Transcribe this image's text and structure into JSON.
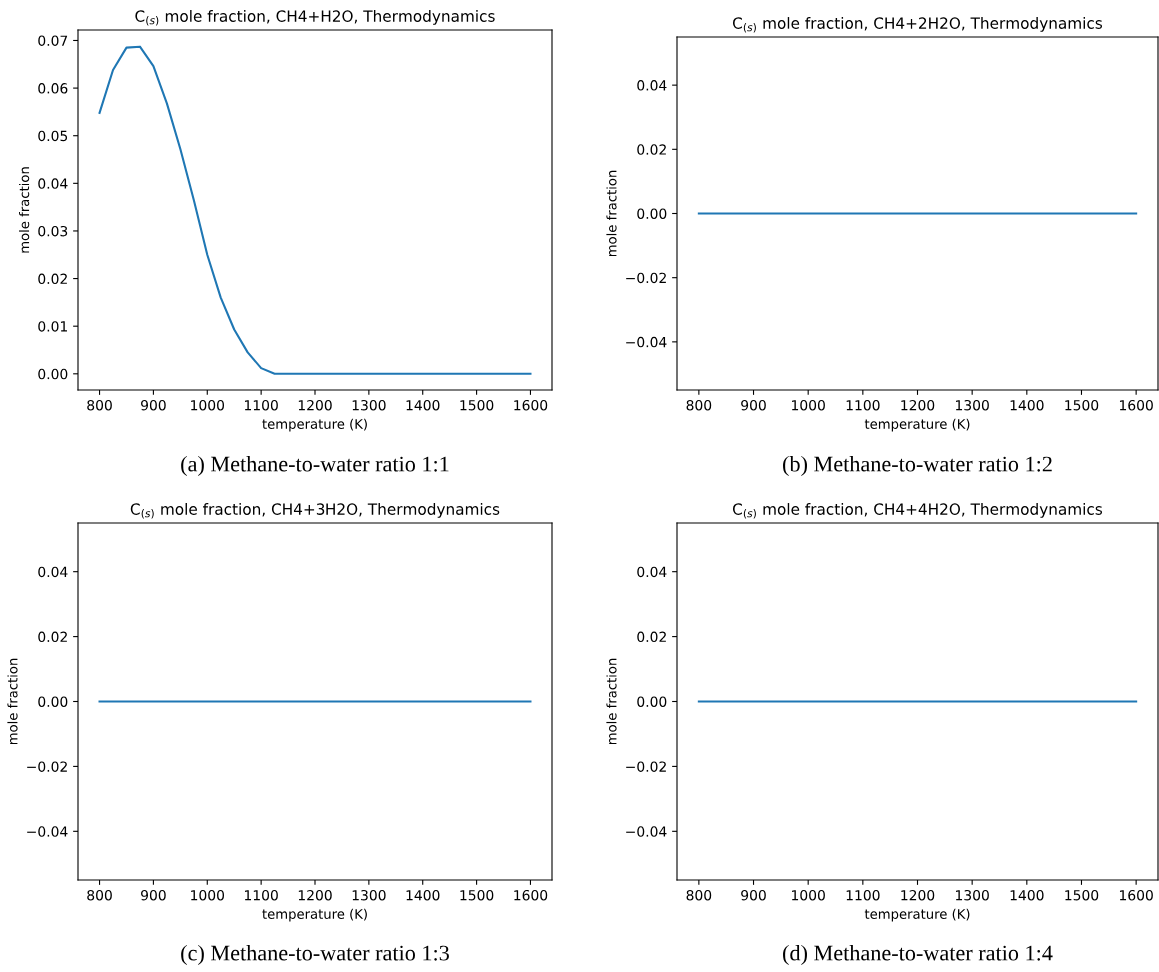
{
  "chart_data": [
    {
      "type": "line",
      "title": "C$_{(s)}$ mole fraction, CH4+H2O, Thermodynamics",
      "xlabel": "temperature (K)",
      "ylabel": "mole fraction",
      "annotations": [
        "(a) Methane-to-water ratio 1:1"
      ],
      "x": [
        800,
        825,
        850,
        875,
        900,
        925,
        950,
        975,
        1000,
        1025,
        1050,
        1075,
        1100,
        1125,
        1150,
        1200,
        1300,
        1400,
        1500,
        1600
      ],
      "series": [
        {
          "color": "#1f77b4",
          "values": [
            0.0548,
            0.0638,
            0.0685,
            0.0687,
            0.0646,
            0.0568,
            0.0472,
            0.0365,
            0.025,
            0.016,
            0.0093,
            0.0045,
            0.0012,
            0,
            0,
            0,
            0,
            0,
            0,
            0
          ]
        }
      ],
      "xlim": [
        760,
        1640
      ],
      "ylim": [
        -0.0034,
        0.0722
      ],
      "xticks": [
        800,
        900,
        1000,
        1100,
        1200,
        1300,
        1400,
        1500,
        1600
      ],
      "yticks": [
        {
          "value": 0,
          "label": "0.00"
        },
        {
          "value": 0.01,
          "label": "0.01"
        },
        {
          "value": 0.02,
          "label": "0.02"
        },
        {
          "value": 0.03,
          "label": "0.03"
        },
        {
          "value": 0.04,
          "label": "0.04"
        },
        {
          "value": 0.05,
          "label": "0.05"
        },
        {
          "value": 0.06,
          "label": "0.06"
        },
        {
          "value": 0.07,
          "label": "0.07"
        }
      ]
    },
    {
      "type": "line",
      "title": "C$_{(s)}$ mole fraction, CH4+2H2O, Thermodynamics",
      "xlabel": "temperature (K)",
      "ylabel": "mole fraction",
      "annotations": [
        "(b) Methane-to-water ratio 1:2"
      ],
      "x": [
        800,
        1600
      ],
      "series": [
        {
          "color": "#1f77b4",
          "values": [
            0,
            0
          ]
        }
      ],
      "xlim": [
        760,
        1640
      ],
      "ylim": [
        -0.055,
        0.055
      ],
      "xticks": [
        800,
        900,
        1000,
        1100,
        1200,
        1300,
        1400,
        1500,
        1600
      ],
      "yticks": [
        {
          "value": -0.04,
          "label": "−0.04"
        },
        {
          "value": -0.02,
          "label": "−0.02"
        },
        {
          "value": 0,
          "label": "0.00"
        },
        {
          "value": 0.02,
          "label": "0.02"
        },
        {
          "value": 0.04,
          "label": "0.04"
        }
      ]
    },
    {
      "type": "line",
      "title": "C$_{(s)}$ mole fraction, CH4+3H2O, Thermodynamics",
      "xlabel": "temperature (K)",
      "ylabel": "mole fraction",
      "annotations": [
        "(c) Methane-to-water ratio 1:3"
      ],
      "x": [
        800,
        1600
      ],
      "series": [
        {
          "color": "#1f77b4",
          "values": [
            0,
            0
          ]
        }
      ],
      "xlim": [
        760,
        1640
      ],
      "ylim": [
        -0.055,
        0.055
      ],
      "xticks": [
        800,
        900,
        1000,
        1100,
        1200,
        1300,
        1400,
        1500,
        1600
      ],
      "yticks": [
        {
          "value": -0.04,
          "label": "−0.04"
        },
        {
          "value": -0.02,
          "label": "−0.02"
        },
        {
          "value": 0,
          "label": "0.00"
        },
        {
          "value": 0.02,
          "label": "0.02"
        },
        {
          "value": 0.04,
          "label": "0.04"
        }
      ]
    },
    {
      "type": "line",
      "title": "C$_{(s)}$ mole fraction, CH4+4H2O, Thermodynamics",
      "xlabel": "temperature (K)",
      "ylabel": "mole fraction",
      "annotations": [
        "(d) Methane-to-water ratio 1:4"
      ],
      "x": [
        800,
        1600
      ],
      "series": [
        {
          "color": "#1f77b4",
          "values": [
            0,
            0
          ]
        }
      ],
      "xlim": [
        760,
        1640
      ],
      "ylim": [
        -0.055,
        0.055
      ],
      "xticks": [
        800,
        900,
        1000,
        1100,
        1200,
        1300,
        1400,
        1500,
        1600
      ],
      "yticks": [
        {
          "value": -0.04,
          "label": "−0.04"
        },
        {
          "value": -0.02,
          "label": "−0.02"
        },
        {
          "value": 0,
          "label": "0.00"
        },
        {
          "value": 0.02,
          "label": "0.02"
        },
        {
          "value": 0.04,
          "label": "0.04"
        }
      ]
    }
  ]
}
